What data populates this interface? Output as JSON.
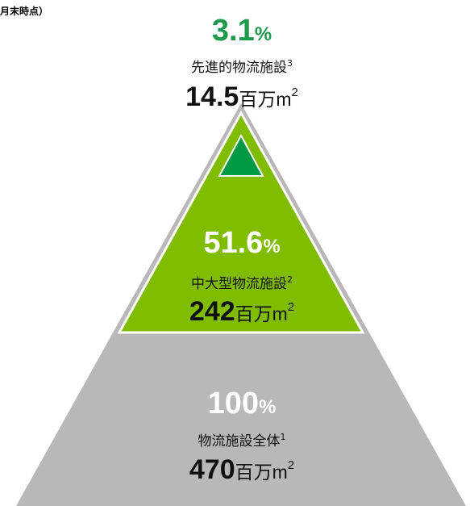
{
  "note": "月末時点）",
  "tiers": [
    {
      "percent": "3.1",
      "percent_unit": "%",
      "name": "先進的物流施設",
      "footnote": "3",
      "area": "14.5",
      "area_unit": "百万m",
      "area_sup": "2"
    },
    {
      "percent": "51.6",
      "percent_unit": "%",
      "name": "中大型物流施設",
      "footnote": "2",
      "area": "242",
      "area_unit": "百万m",
      "area_sup": "2"
    },
    {
      "percent": "100",
      "percent_unit": "%",
      "name": "物流施設全体",
      "footnote": "1",
      "area": "470",
      "area_unit": "百万m",
      "area_sup": "2"
    }
  ]
}
